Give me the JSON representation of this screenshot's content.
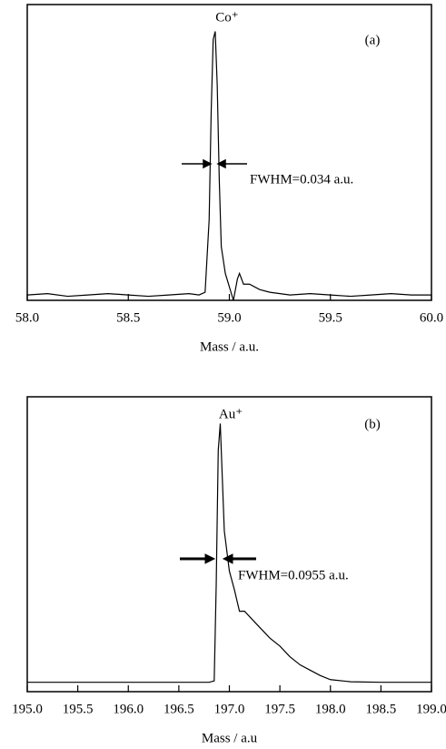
{
  "chart_data": [
    {
      "type": "line",
      "annotations": [
        "Co⁺",
        "(a)",
        "FWHM=0.034 a.u."
      ],
      "xlabel": "Mass / a.u.",
      "xlim": [
        58,
        60
      ],
      "xticks": [
        {
          "value": 58,
          "label": "58.0"
        },
        {
          "value": 58.5,
          "label": "58.5"
        },
        {
          "value": 59,
          "label": "59.0"
        },
        {
          "value": 59.5,
          "label": "59.5"
        },
        {
          "value": 60,
          "label": "60.0"
        }
      ],
      "ylim": [
        0,
        1.1
      ],
      "color": "#000000",
      "x": [
        58.0,
        58.1,
        58.2,
        58.3,
        58.4,
        58.5,
        58.6,
        58.7,
        58.8,
        58.85,
        58.88,
        58.9,
        58.91,
        58.92,
        58.93,
        58.94,
        58.95,
        58.96,
        58.98,
        59.0,
        59.02,
        59.04,
        59.05,
        59.07,
        59.1,
        59.15,
        59.2,
        59.3,
        59.4,
        59.5,
        59.6,
        59.7,
        59.8,
        59.9,
        60.0
      ],
      "values": [
        0.02,
        0.025,
        0.015,
        0.02,
        0.025,
        0.02,
        0.015,
        0.02,
        0.025,
        0.02,
        0.03,
        0.3,
        0.7,
        0.97,
        1.0,
        0.8,
        0.45,
        0.2,
        0.1,
        0.05,
        0.0,
        0.08,
        0.1,
        0.06,
        0.06,
        0.04,
        0.03,
        0.02,
        0.025,
        0.02,
        0.015,
        0.02,
        0.025,
        0.02,
        0.02
      ]
    },
    {
      "type": "line",
      "annotations": [
        "Au⁺",
        "(b)",
        "FWHM=0.0955 a.u."
      ],
      "xlabel": "Mass / a.u",
      "xlim": [
        195,
        199
      ],
      "xticks": [
        {
          "value": 195,
          "label": "195.0"
        },
        195.5,
        {
          "value": 196,
          "label": "196.0"
        },
        196.5,
        {
          "value": 197,
          "label": "197.0"
        },
        197.5,
        {
          "value": 198,
          "label": "198.0"
        },
        198.5,
        {
          "value": 199,
          "label": "199.0"
        }
      ],
      "ylim": [
        0,
        1.1
      ],
      "color": "#000000",
      "x": [
        195.0,
        195.5,
        196.0,
        196.5,
        196.8,
        196.85,
        196.87,
        196.89,
        196.91,
        196.93,
        196.95,
        197.0,
        197.05,
        197.1,
        197.15,
        197.2,
        197.3,
        197.4,
        197.5,
        197.6,
        197.7,
        197.8,
        197.9,
        198.0,
        198.2,
        198.5,
        199.0
      ],
      "values": [
        0.035,
        0.035,
        0.035,
        0.035,
        0.035,
        0.04,
        0.4,
        0.9,
        1.0,
        0.8,
        0.6,
        0.45,
        0.38,
        0.3,
        0.3,
        0.28,
        0.24,
        0.2,
        0.17,
        0.13,
        0.1,
        0.08,
        0.06,
        0.045,
        0.037,
        0.035,
        0.035
      ]
    }
  ]
}
